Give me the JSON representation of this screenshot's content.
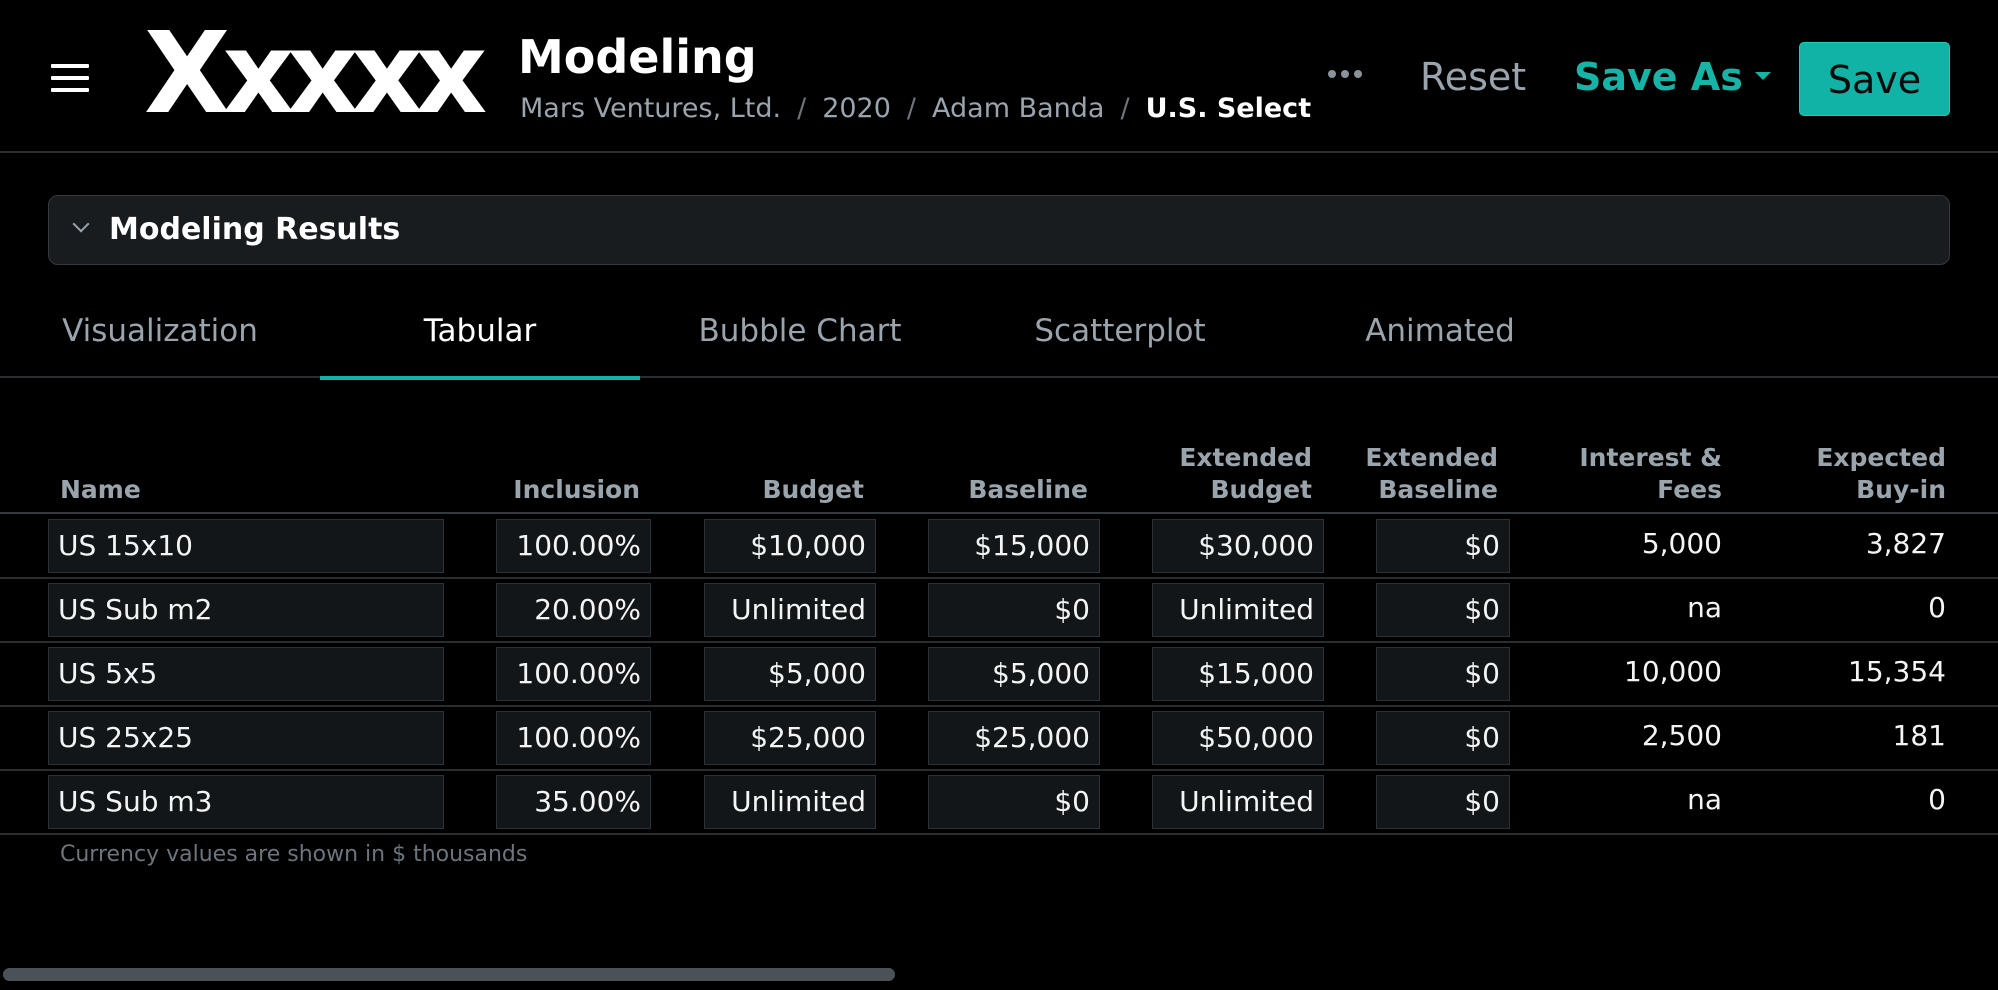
{
  "header": {
    "logo": "Xxxxx",
    "title": "Modeling",
    "breadcrumb": [
      "Mars Ventures, Ltd.",
      "2020",
      "Adam Banda",
      "U.S. Select"
    ],
    "reset_label": "Reset",
    "save_as_label": "Save As",
    "save_label": "Save"
  },
  "panel": {
    "title": "Modeling Results"
  },
  "tabs": [
    "Visualization",
    "Tabular",
    "Bubble Chart",
    "Scatterplot",
    "Animated"
  ],
  "active_tab": "Tabular",
  "table": {
    "headers": {
      "name": "Name",
      "inclusion": "Inclusion",
      "budget": "Budget",
      "baseline": "Baseline",
      "ext_budget_1": "Extended",
      "ext_budget_2": "Budget",
      "ext_baseline_1": "Extended",
      "ext_baseline_2": "Baseline",
      "interest_1": "Interest &",
      "interest_2": "Fees",
      "buyin_1": "Expected",
      "buyin_2": "Buy-in"
    },
    "rows": [
      {
        "name": "US 15x10",
        "inclusion": "100.00%",
        "budget": "$10,000",
        "baseline": "$15,000",
        "ext_budget": "$30,000",
        "ext_baseline": "$0",
        "interest": "5,000",
        "buyin": "3,827"
      },
      {
        "name": "US Sub m2",
        "inclusion": "20.00%",
        "budget": "Unlimited",
        "baseline": "$0",
        "ext_budget": "Unlimited",
        "ext_baseline": "$0",
        "interest": "na",
        "buyin": "0"
      },
      {
        "name": "US 5x5",
        "inclusion": "100.00%",
        "budget": "$5,000",
        "baseline": "$5,000",
        "ext_budget": "$15,000",
        "ext_baseline": "$0",
        "interest": "10,000",
        "buyin": "15,354"
      },
      {
        "name": "US 25x25",
        "inclusion": "100.00%",
        "budget": "$25,000",
        "baseline": "$25,000",
        "ext_budget": "$50,000",
        "ext_baseline": "$0",
        "interest": "2,500",
        "buyin": "181"
      },
      {
        "name": "US Sub m3",
        "inclusion": "35.00%",
        "budget": "Unlimited",
        "baseline": "$0",
        "ext_budget": "Unlimited",
        "ext_baseline": "$0",
        "interest": "na",
        "buyin": "0"
      }
    ],
    "footnote": "Currency values are shown in $ thousands"
  },
  "colors": {
    "accent": "#10b3a6",
    "background": "#000000",
    "muted_text": "#9aa4ad"
  },
  "icons": {
    "menu": "hamburger-menu-icon",
    "more": "more-dots-icon",
    "collapse": "chevron-down-icon",
    "dropdown": "caret-down-icon"
  }
}
